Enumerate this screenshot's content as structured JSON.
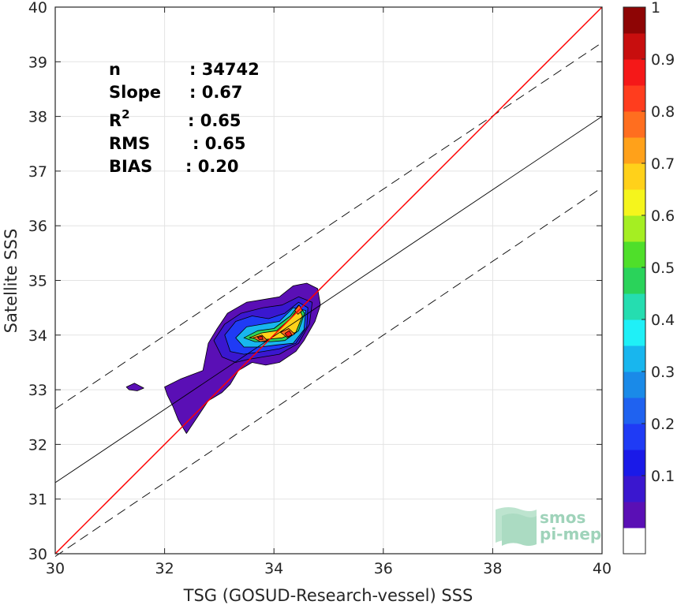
{
  "chart_data": {
    "type": "scatter-density-contour",
    "xlabel": "TSG (GOSUD-Research-vessel) SSS",
    "ylabel": "Satellite SSS",
    "xlim": [
      30,
      40
    ],
    "ylim": [
      30,
      40
    ],
    "xticks": [
      "30",
      "32",
      "34",
      "36",
      "38",
      "40"
    ],
    "yticks": [
      "30",
      "31",
      "32",
      "33",
      "34",
      "35",
      "36",
      "37",
      "38",
      "39",
      "40"
    ],
    "grid": true,
    "stats": [
      {
        "label": "n",
        "sep": ":",
        "value": "34742"
      },
      {
        "label": "Slope",
        "sep": ":",
        "value": "0.67"
      },
      {
        "label": "R",
        "sup": "2",
        "sep": ":",
        "value": "0.65"
      },
      {
        "label": "RMS",
        "sep": ":",
        "value": "0.65"
      },
      {
        "label": "BIAS",
        "sep": ":",
        "value": "0.20"
      }
    ],
    "identity_line": {
      "from": [
        30,
        30
      ],
      "to": [
        40,
        40
      ],
      "color": "#ff0000"
    },
    "regression_line": {
      "from": [
        30,
        31.3
      ],
      "to": [
        40,
        38.0
      ],
      "color": "#000000"
    },
    "regression_band_upper": {
      "from": [
        30,
        32.65
      ],
      "to": [
        40,
        39.35
      ]
    },
    "regression_band_lower": {
      "from": [
        30,
        29.95
      ],
      "to": [
        40,
        36.7
      ]
    },
    "colorbar": {
      "ticks": [
        "0.1",
        "0.2",
        "0.3",
        "0.4",
        "0.5",
        "0.6",
        "0.7",
        "0.8",
        "0.9",
        "1"
      ],
      "levels": [
        0.05,
        0.1,
        0.15,
        0.2,
        0.25,
        0.3,
        0.35,
        0.4,
        0.45,
        0.5,
        0.55,
        0.6,
        0.65,
        0.7,
        0.75,
        0.8,
        0.85,
        0.9,
        0.95,
        1.0
      ],
      "colors": [
        "#ffffff",
        "#5a0fb5",
        "#3a17cf",
        "#1a1ae8",
        "#1f3bf5",
        "#1f62f0",
        "#1a8ae8",
        "#18b6ee",
        "#1ff0f7",
        "#25ddb0",
        "#2ad35a",
        "#4fdf2a",
        "#a5ee22",
        "#f5f51c",
        "#ffd11a",
        "#ffa11a",
        "#ff6e1f",
        "#ff3d1e",
        "#f51818",
        "#c80e0e",
        "#8e0505"
      ]
    },
    "density_contours": [
      {
        "level": 0.05,
        "color": "#5a0fb5",
        "points": [
          [
            32.0,
            33.05
          ],
          [
            32.3,
            33.2
          ],
          [
            32.7,
            33.35
          ],
          [
            32.75,
            33.6
          ],
          [
            32.8,
            33.85
          ],
          [
            32.95,
            34.1
          ],
          [
            33.15,
            34.4
          ],
          [
            33.5,
            34.6
          ],
          [
            33.8,
            34.65
          ],
          [
            34.1,
            34.7
          ],
          [
            34.35,
            34.9
          ],
          [
            34.6,
            34.95
          ],
          [
            34.8,
            34.85
          ],
          [
            34.85,
            34.55
          ],
          [
            34.75,
            34.25
          ],
          [
            34.55,
            33.9
          ],
          [
            34.4,
            33.7
          ],
          [
            34.1,
            33.5
          ],
          [
            33.85,
            33.45
          ],
          [
            33.6,
            33.5
          ],
          [
            33.35,
            33.35
          ],
          [
            33.2,
            33.1
          ],
          [
            33.05,
            32.95
          ],
          [
            32.8,
            32.8
          ],
          [
            32.6,
            32.5
          ],
          [
            32.4,
            32.2
          ],
          [
            32.25,
            32.45
          ],
          [
            32.15,
            32.7
          ],
          [
            32.05,
            32.9
          ]
        ]
      },
      {
        "level": 0.05,
        "color": "#5a0fb5",
        "points": [
          [
            31.3,
            33.05
          ],
          [
            31.45,
            33.12
          ],
          [
            31.62,
            33.03
          ],
          [
            31.5,
            32.98
          ],
          [
            31.35,
            33.0
          ]
        ]
      },
      {
        "level": 0.1,
        "color": "#3a17cf",
        "points": [
          [
            32.9,
            33.9
          ],
          [
            33.1,
            34.2
          ],
          [
            33.4,
            34.4
          ],
          [
            33.8,
            34.5
          ],
          [
            34.15,
            34.55
          ],
          [
            34.45,
            34.7
          ],
          [
            34.7,
            34.6
          ],
          [
            34.65,
            34.2
          ],
          [
            34.45,
            33.85
          ],
          [
            34.1,
            33.65
          ],
          [
            33.8,
            33.6
          ],
          [
            33.5,
            33.55
          ],
          [
            33.3,
            33.5
          ],
          [
            33.05,
            33.6
          ]
        ]
      },
      {
        "level": 0.2,
        "color": "#1f3bf5",
        "points": [
          [
            33.1,
            34.0
          ],
          [
            33.3,
            34.25
          ],
          [
            33.6,
            34.35
          ],
          [
            33.9,
            34.3
          ],
          [
            34.2,
            34.4
          ],
          [
            34.45,
            34.6
          ],
          [
            34.62,
            34.5
          ],
          [
            34.6,
            34.15
          ],
          [
            34.4,
            33.85
          ],
          [
            34.1,
            33.75
          ],
          [
            33.8,
            33.7
          ],
          [
            33.45,
            33.65
          ],
          [
            33.2,
            33.7
          ]
        ]
      },
      {
        "level": 0.35,
        "color": "#18b6ee",
        "points": [
          [
            33.3,
            33.95
          ],
          [
            33.5,
            34.15
          ],
          [
            33.8,
            34.2
          ],
          [
            34.1,
            34.25
          ],
          [
            34.35,
            34.5
          ],
          [
            34.58,
            34.45
          ],
          [
            34.55,
            34.1
          ],
          [
            34.35,
            33.85
          ],
          [
            34.05,
            33.82
          ],
          [
            33.75,
            33.78
          ],
          [
            33.45,
            33.78
          ]
        ]
      },
      {
        "level": 0.5,
        "color": "#2ad35a",
        "points": [
          [
            33.45,
            33.95
          ],
          [
            33.7,
            34.08
          ],
          [
            34.0,
            34.12
          ],
          [
            34.3,
            34.35
          ],
          [
            34.45,
            34.55
          ],
          [
            34.56,
            34.4
          ],
          [
            34.45,
            34.08
          ],
          [
            34.2,
            33.9
          ],
          [
            33.95,
            33.88
          ],
          [
            33.65,
            33.88
          ]
        ]
      },
      {
        "level": 0.65,
        "color": "#ffd11a",
        "points": [
          [
            33.55,
            33.95
          ],
          [
            33.78,
            34.04
          ],
          [
            34.05,
            34.08
          ],
          [
            34.3,
            34.3
          ],
          [
            34.45,
            34.5
          ],
          [
            34.52,
            34.35
          ],
          [
            34.4,
            34.05
          ],
          [
            34.15,
            33.95
          ],
          [
            33.85,
            33.92
          ]
        ]
      },
      {
        "level": 0.8,
        "color": "#ff6e1f",
        "points": [
          [
            33.62,
            33.95
          ],
          [
            33.78,
            34.0
          ],
          [
            33.88,
            33.9
          ],
          [
            33.75,
            33.88
          ]
        ]
      },
      {
        "level": 0.8,
        "color": "#ff6e1f",
        "points": [
          [
            34.12,
            34.05
          ],
          [
            34.27,
            34.12
          ],
          [
            34.38,
            34.02
          ],
          [
            34.25,
            33.95
          ]
        ]
      },
      {
        "level": 0.8,
        "color": "#ff6e1f",
        "points": [
          [
            34.38,
            34.45
          ],
          [
            34.46,
            34.55
          ],
          [
            34.52,
            34.45
          ],
          [
            34.44,
            34.38
          ]
        ]
      },
      {
        "level": 0.9,
        "color": "#f51818",
        "points": [
          [
            34.2,
            34.03
          ],
          [
            34.28,
            34.08
          ],
          [
            34.33,
            34.0
          ],
          [
            34.25,
            33.97
          ]
        ]
      },
      {
        "level": 0.9,
        "color": "#f51818",
        "points": [
          [
            33.7,
            33.96
          ],
          [
            33.78,
            33.98
          ],
          [
            33.8,
            33.92
          ],
          [
            33.73,
            33.92
          ]
        ]
      }
    ],
    "watermark": {
      "line1": "smos",
      "line2": "pi-mep"
    }
  }
}
